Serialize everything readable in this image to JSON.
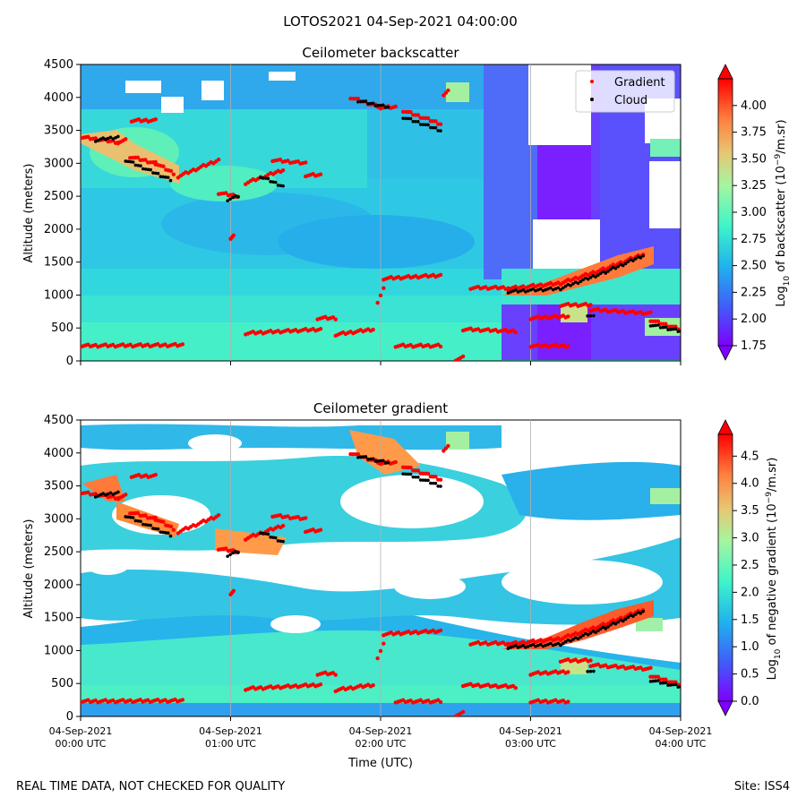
{
  "figure": {
    "title": "LOTOS2021 04-Sep-2021 04:00:00",
    "footer_left": "REAL TIME DATA, NOT CHECKED FOR QUALITY",
    "footer_right": "Site: ISS4"
  },
  "chart_data": [
    {
      "type": "heatmap",
      "title": "Ceilometer backscatter",
      "ylabel": "Altitude (meters)",
      "xlabel": "",
      "ylim": [
        0,
        4500
      ],
      "yticks": [
        0,
        500,
        1000,
        1500,
        2000,
        2500,
        3000,
        3500,
        4000,
        4500
      ],
      "xlim_hours": [
        0,
        4
      ],
      "grid": "vertical at hourly ticks",
      "legend": {
        "placement": "top-right",
        "entries": [
          {
            "name": "Gradient",
            "color": "#ff0000"
          },
          {
            "name": "Cloud",
            "color": "#000000"
          }
        ]
      },
      "colorbar": {
        "label_main": "Log",
        "label_sub": "10",
        "label_tail": " of backscatter (10",
        "label_sup": "−9",
        "label_end": "/m.sr)",
        "min": 1.75,
        "max": 4.25,
        "ticks": [
          "1.75",
          "2.00",
          "2.25",
          "2.50",
          "2.75",
          "3.00",
          "3.25",
          "3.50",
          "3.75",
          "4.00"
        ],
        "tick_values": [
          1.75,
          2.0,
          2.25,
          2.5,
          2.75,
          3.0,
          3.25,
          3.5,
          3.75,
          4.0
        ],
        "colormap": "rainbow"
      },
      "gradient_points": [
        {
          "segment": [
            [
              0.0,
              230
            ],
            [
              0.68,
              240
            ]
          ]
        },
        {
          "segment": [
            [
              0.0,
              3400
            ],
            [
              0.25,
              3320
            ],
            [
              0.3,
              3350
            ]
          ]
        },
        {
          "segment": [
            [
              0.33,
              3100
            ],
            [
              0.5,
              3000
            ],
            [
              0.62,
              2850
            ]
          ]
        },
        {
          "segment": [
            [
              0.34,
              3650
            ],
            [
              0.5,
              3650
            ]
          ]
        },
        {
          "segment": [
            [
              0.65,
              2800
            ],
            [
              0.92,
              3050
            ]
          ]
        },
        {
          "segment": [
            [
              0.92,
              2550
            ],
            [
              1.05,
              2500
            ]
          ]
        },
        {
          "segment": [
            [
              1.1,
              2700
            ],
            [
              1.35,
              2900
            ]
          ]
        },
        {
          "segment": [
            [
              1.28,
              3050
            ],
            [
              1.5,
              3000
            ]
          ]
        },
        {
          "segment": [
            [
              1.5,
              2820
            ],
            [
              1.6,
              2820
            ]
          ]
        },
        {
          "segment": [
            [
              1.0,
              1870
            ],
            [
              1.02,
              1900
            ]
          ]
        },
        {
          "segment": [
            [
              1.1,
              420
            ],
            [
              1.6,
              480
            ]
          ]
        },
        {
          "segment": [
            [
              1.58,
              650
            ],
            [
              1.7,
              650
            ]
          ]
        },
        {
          "segment": [
            [
              1.7,
              400
            ],
            [
              1.95,
              480
            ]
          ]
        },
        {
          "segment": [
            [
              1.98,
              900
            ],
            [
              2.02,
              1100
            ]
          ]
        },
        {
          "segment": [
            [
              2.02,
              1250
            ],
            [
              2.4,
              1300
            ]
          ]
        },
        {
          "segment": [
            [
              2.1,
              230
            ],
            [
              2.4,
              230
            ]
          ]
        },
        {
          "segment": [
            [
              2.55,
              480
            ],
            [
              2.9,
              450
            ]
          ]
        },
        {
          "segment": [
            [
              2.6,
              1110
            ],
            [
              2.85,
              1110
            ]
          ]
        },
        {
          "segment": [
            [
              2.85,
              1100
            ],
            [
              3.2,
              1180
            ],
            [
              3.5,
              1400
            ],
            [
              3.75,
              1620
            ]
          ]
        },
        {
          "segment": [
            [
              3.0,
              650
            ],
            [
              3.25,
              680
            ]
          ]
        },
        {
          "segment": [
            [
              3.2,
              850
            ],
            [
              3.4,
              850
            ]
          ]
        },
        {
          "segment": [
            [
              3.4,
              780
            ],
            [
              3.8,
              720
            ]
          ]
        },
        {
          "segment": [
            [
              3.8,
              620
            ],
            [
              4.0,
              480
            ]
          ]
        },
        {
          "segment": [
            [
              1.8,
              4000
            ],
            [
              2.0,
              3850
            ],
            [
              2.1,
              3850
            ]
          ]
        },
        {
          "segment": [
            [
              2.15,
              3800
            ],
            [
              2.4,
              3600
            ]
          ]
        },
        {
          "segment": [
            [
              2.42,
              4050
            ],
            [
              2.45,
              4100
            ]
          ]
        },
        {
          "segment": [
            [
              3.0,
              230
            ],
            [
              3.25,
              230
            ]
          ]
        },
        {
          "segment": [
            [
              2.5,
              20
            ],
            [
              2.55,
              50
            ]
          ]
        }
      ],
      "cloud_points": [
        {
          "segment": [
            [
              0.1,
              3350
            ],
            [
              0.25,
              3400
            ]
          ]
        },
        {
          "segment": [
            [
              0.3,
              3050
            ],
            [
              0.6,
              2750
            ]
          ]
        },
        {
          "segment": [
            [
              0.98,
              2450
            ],
            [
              1.05,
              2500
            ]
          ]
        },
        {
          "segment": [
            [
              1.2,
              2800
            ],
            [
              1.35,
              2650
            ]
          ]
        },
        {
          "segment": [
            [
              1.85,
              3950
            ],
            [
              2.05,
              3850
            ]
          ]
        },
        {
          "segment": [
            [
              2.15,
              3700
            ],
            [
              2.4,
              3500
            ]
          ]
        },
        {
          "segment": [
            [
              2.85,
              1050
            ],
            [
              3.2,
              1100
            ],
            [
              3.5,
              1350
            ],
            [
              3.75,
              1600
            ]
          ]
        },
        {
          "segment": [
            [
              3.38,
              700
            ],
            [
              3.42,
              680
            ]
          ]
        },
        {
          "segment": [
            [
              3.8,
              550
            ],
            [
              4.0,
              450
            ]
          ]
        }
      ]
    },
    {
      "type": "heatmap",
      "title": "Ceilometer gradient",
      "ylabel": "Altitude (meters)",
      "xlabel": "Time (UTC)",
      "ylim": [
        0,
        4500
      ],
      "yticks": [
        0,
        500,
        1000,
        1500,
        2000,
        2500,
        3000,
        3500,
        4000,
        4500
      ],
      "xlim_hours": [
        0,
        4
      ],
      "xticks": [
        {
          "hour": 0,
          "line1": "04-Sep-2021",
          "line2": "00:00 UTC"
        },
        {
          "hour": 1,
          "line1": "04-Sep-2021",
          "line2": "01:00 UTC"
        },
        {
          "hour": 2,
          "line1": "04-Sep-2021",
          "line2": "02:00 UTC"
        },
        {
          "hour": 3,
          "line1": "04-Sep-2021",
          "line2": "03:00 UTC"
        },
        {
          "hour": 4,
          "line1": "04-Sep-2021",
          "line2": "04:00 UTC"
        }
      ],
      "grid": "vertical at hourly ticks",
      "colorbar": {
        "label_main": "Log",
        "label_sub": "10",
        "label_tail": " of negative gradient (10",
        "label_sup": "−9",
        "label_end": "/m.sr)",
        "min": 0.0,
        "max": 4.9,
        "ticks": [
          "0.0",
          "0.5",
          "1.0",
          "1.5",
          "2.0",
          "2.5",
          "3.0",
          "3.5",
          "4.0",
          "4.5"
        ],
        "tick_values": [
          0.0,
          0.5,
          1.0,
          1.5,
          2.0,
          2.5,
          3.0,
          3.5,
          4.0,
          4.5
        ],
        "colormap": "rainbow"
      }
    }
  ]
}
